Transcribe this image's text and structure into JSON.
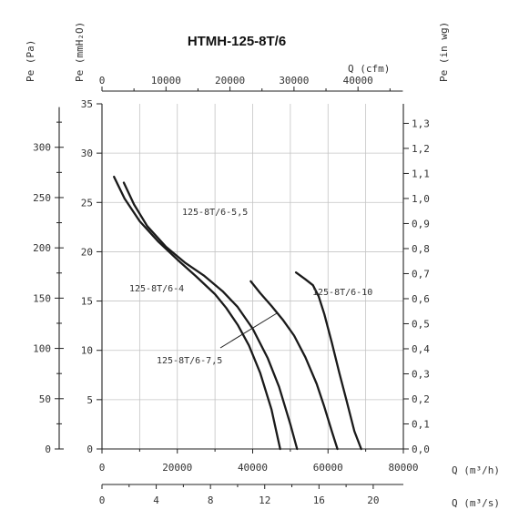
{
  "chart_data": {
    "type": "line",
    "title": "HTMH-125-8T/6",
    "axes": {
      "bottom_flow": {
        "label": "Q (m³/h)",
        "range": [
          0,
          80000
        ],
        "ticks": [
          "0",
          "20000",
          "40000",
          "60000",
          "80000"
        ]
      },
      "bottom_flow_secondary": {
        "label": "Q (m³/s)",
        "range": [
          0,
          22.22
        ],
        "ticks": [
          "0",
          "4",
          "8",
          "12",
          "16",
          "20"
        ]
      },
      "top_flow": {
        "label": "Q (cfm)",
        "ticks": [
          "0",
          "10000",
          "20000",
          "30000",
          "40000"
        ]
      },
      "left_mmH2O": {
        "label": "Pe (mmH₂O)",
        "range": [
          0,
          35
        ],
        "ticks": [
          "0",
          "5",
          "10",
          "15",
          "20",
          "25",
          "30",
          "35"
        ]
      },
      "left_Pa": {
        "label": "Pe (Pa)",
        "ticks": [
          "0",
          "50",
          "100",
          "150",
          "200",
          "250",
          "300"
        ]
      },
      "right_inwg": {
        "label": "Pe (in wg)",
        "ticks": [
          "0,0",
          "0,1",
          "0,2",
          "0,3",
          "0,4",
          "0,5",
          "0,6",
          "0,7",
          "0,8",
          "0,9",
          "1,0",
          "1,1",
          "1,2",
          "1,3"
        ]
      }
    },
    "grid": true,
    "series": [
      {
        "name": "125-8T/6-4",
        "x_m3h": [
          3200,
          6000,
          10000,
          15000,
          20000,
          25000,
          30000,
          33000,
          36000,
          39000,
          42000,
          45000,
          47300
        ],
        "y_mmH2O": [
          27.6,
          25.4,
          23.1,
          21.0,
          19.2,
          17.5,
          15.7,
          14.3,
          12.6,
          10.5,
          7.7,
          4.0,
          0
        ]
      },
      {
        "name": "125-8T/6-5,5",
        "x_m3h": [
          5800,
          8500,
          12000,
          17000,
          22000,
          27000,
          32000,
          36000,
          40000,
          44000,
          47000,
          50000,
          51800
        ],
        "y_mmH2O": [
          27.0,
          24.8,
          22.6,
          20.5,
          18.9,
          17.6,
          16.0,
          14.4,
          12.2,
          9.2,
          6.3,
          2.5,
          0
        ]
      },
      {
        "name": "125-8T/6-7,5",
        "x_m3h": [
          39500,
          42000,
          45000,
          48000,
          51000,
          54000,
          57000,
          59000,
          61000,
          62500
        ],
        "y_mmH2O": [
          17.0,
          15.8,
          14.5,
          13.1,
          11.5,
          9.3,
          6.6,
          4.3,
          1.8,
          0
        ]
      },
      {
        "name": "125-8T/6-10",
        "x_m3h": [
          51500,
          54000,
          56000,
          57500,
          59000,
          61000,
          63000,
          65000,
          67000,
          68800
        ],
        "y_mmH2O": [
          17.9,
          17.2,
          16.6,
          15.5,
          13.7,
          10.8,
          7.7,
          4.8,
          1.8,
          0
        ]
      }
    ]
  }
}
